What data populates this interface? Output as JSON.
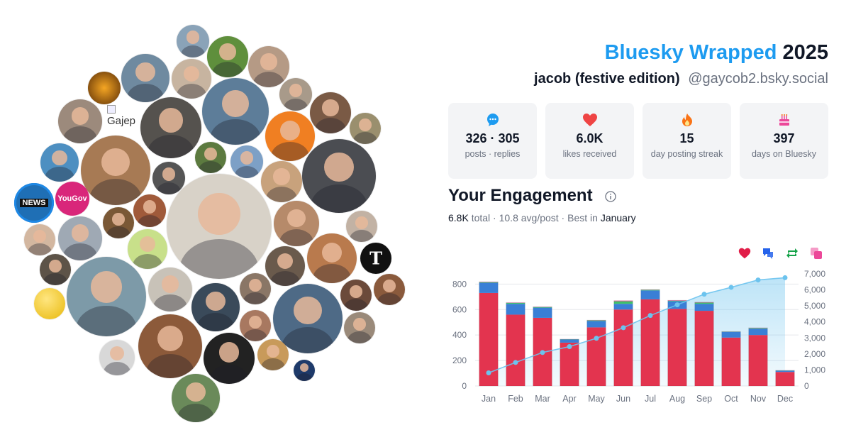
{
  "header": {
    "brand": "Bluesky Wrapped",
    "year": "2025",
    "display_name": "jacob (festive edition)",
    "handle": "@gaycob2.bsky.social"
  },
  "stats": [
    {
      "icon": "speech-bubble-icon",
      "value": "326 · 305",
      "label": "posts · replies",
      "color": "#1d9bf0"
    },
    {
      "icon": "heart-icon",
      "value": "6.0K",
      "label": "likes received",
      "color": "#ef4444"
    },
    {
      "icon": "fire-icon",
      "value": "15",
      "label": "day posting streak",
      "color": "#f97316"
    },
    {
      "icon": "cake-icon",
      "value": "397",
      "label": "days on Bluesky",
      "color": "#ec4899"
    }
  ],
  "engagement": {
    "title": "Your Engagement",
    "total": "6.8K",
    "total_suffix": " total · ",
    "avg": "10.8 avg/post",
    "best_prefix": " · Best in ",
    "best_month": "January"
  },
  "legend_icons": [
    {
      "name": "likes-legend-icon",
      "color": "#e11d48"
    },
    {
      "name": "replies-legend-icon",
      "color": "#2563eb"
    },
    {
      "name": "reposts-legend-icon",
      "color": "#16a34a"
    },
    {
      "name": "quotes-legend-icon",
      "color": "#ec4899"
    }
  ],
  "cluster": {
    "broken_image_alt": "Gajep",
    "news_label": "NEWS",
    "yougov_label": "YouGov",
    "nyt_label": "T"
  },
  "chart_data": {
    "type": "bar",
    "categories": [
      "Jan",
      "Feb",
      "Mar",
      "Apr",
      "May",
      "Jun",
      "Jul",
      "Aug",
      "Sep",
      "Oct",
      "Nov",
      "Dec"
    ],
    "series": [
      {
        "name": "likes",
        "color": "#e3344f",
        "values": [
          730,
          560,
          535,
          340,
          460,
          600,
          680,
          605,
          590,
          380,
          400,
          110
        ]
      },
      {
        "name": "replies",
        "color": "#3a7fd6",
        "values": [
          80,
          85,
          80,
          25,
          50,
          45,
          70,
          60,
          55,
          45,
          50,
          10
        ]
      },
      {
        "name": "reposts",
        "color": "#3fbf6a",
        "values": [
          5,
          8,
          5,
          2,
          5,
          20,
          5,
          5,
          10,
          2,
          5,
          2
        ]
      },
      {
        "name": "quotes",
        "color": "#ec4899",
        "values": [
          3,
          2,
          2,
          1,
          2,
          5,
          2,
          3,
          3,
          1,
          2,
          1
        ]
      }
    ],
    "cumulative": {
      "color": "#6cc3ee",
      "values": [
        820,
        1470,
        2090,
        2460,
        2980,
        3640,
        4400,
        5070,
        5730,
        6160,
        6620,
        6760
      ]
    },
    "ylim_left": [
      0,
      880
    ],
    "yticks_left": [
      0,
      200,
      400,
      600,
      800
    ],
    "ytick_labels_left": [
      "0",
      "200",
      "400",
      "600",
      "800"
    ],
    "ylim_right": [
      0,
      7000
    ],
    "yticks_right": [
      0,
      1000,
      2000,
      3000,
      4000,
      5000,
      6000,
      7000
    ],
    "ytick_labels_right": [
      "0",
      "1,000",
      "2,000",
      "3,000",
      "4,000",
      "5,000",
      "6,000",
      "7,000"
    ],
    "grid": true
  }
}
